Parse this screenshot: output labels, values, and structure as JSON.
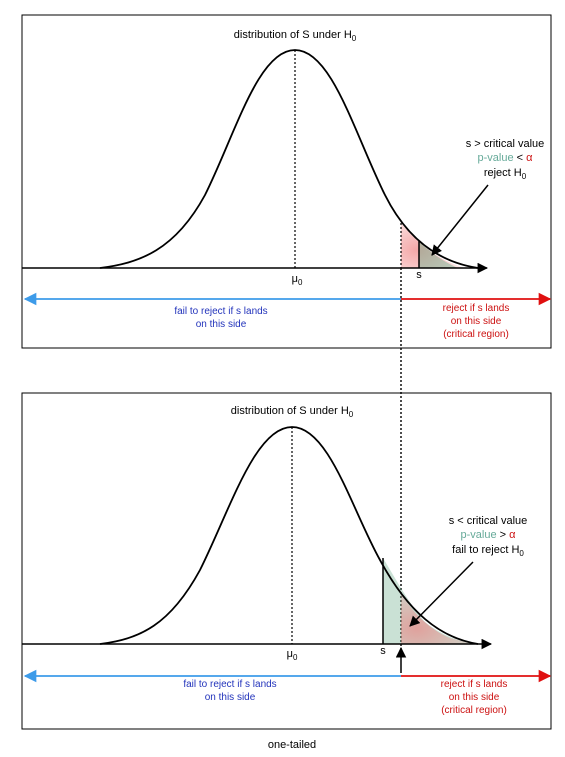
{
  "colors": {
    "black": "#000000",
    "blue": "#2233bb",
    "arrow_blue": "#3d9be9",
    "red": "#e01010",
    "dark_red": "#cc1111",
    "teal": "#66aa99",
    "red_fill": "#ee6666",
    "green_fill": "#66aa88"
  },
  "panel_top": {
    "title": "distribution of S under H",
    "title_sub": "0",
    "mu_label": "μ",
    "mu_sub": "0",
    "s_label": "s",
    "annotation_line1": "s > critical value",
    "annotation_pvalue": "p-value",
    "annotation_lt": "< ",
    "annotation_alpha": "α",
    "annotation_line3": "reject H",
    "annotation_line3_sub": "0",
    "left_region_line1": "fail to reject if s lands",
    "left_region_line2": "on this side",
    "right_region_line1": "reject if s lands",
    "right_region_line2": "on this side",
    "right_region_line3": "(critical region)"
  },
  "panel_bottom": {
    "title": "distribution of S under H",
    "title_sub": "0",
    "mu_label": "μ",
    "mu_sub": "0",
    "s_label": "s",
    "annotation_line1": "s < critical value",
    "annotation_pvalue": "p-value",
    "annotation_gt": "> ",
    "annotation_alpha": "α",
    "annotation_line3": "fail to reject H",
    "annotation_line3_sub": "0",
    "left_region_line1": "fail to reject if s lands",
    "left_region_line2": "on this side",
    "right_region_line1": "reject if s lands",
    "right_region_line2": "on this side",
    "right_region_line3": "(critical region)"
  },
  "caption": "one-tailed"
}
